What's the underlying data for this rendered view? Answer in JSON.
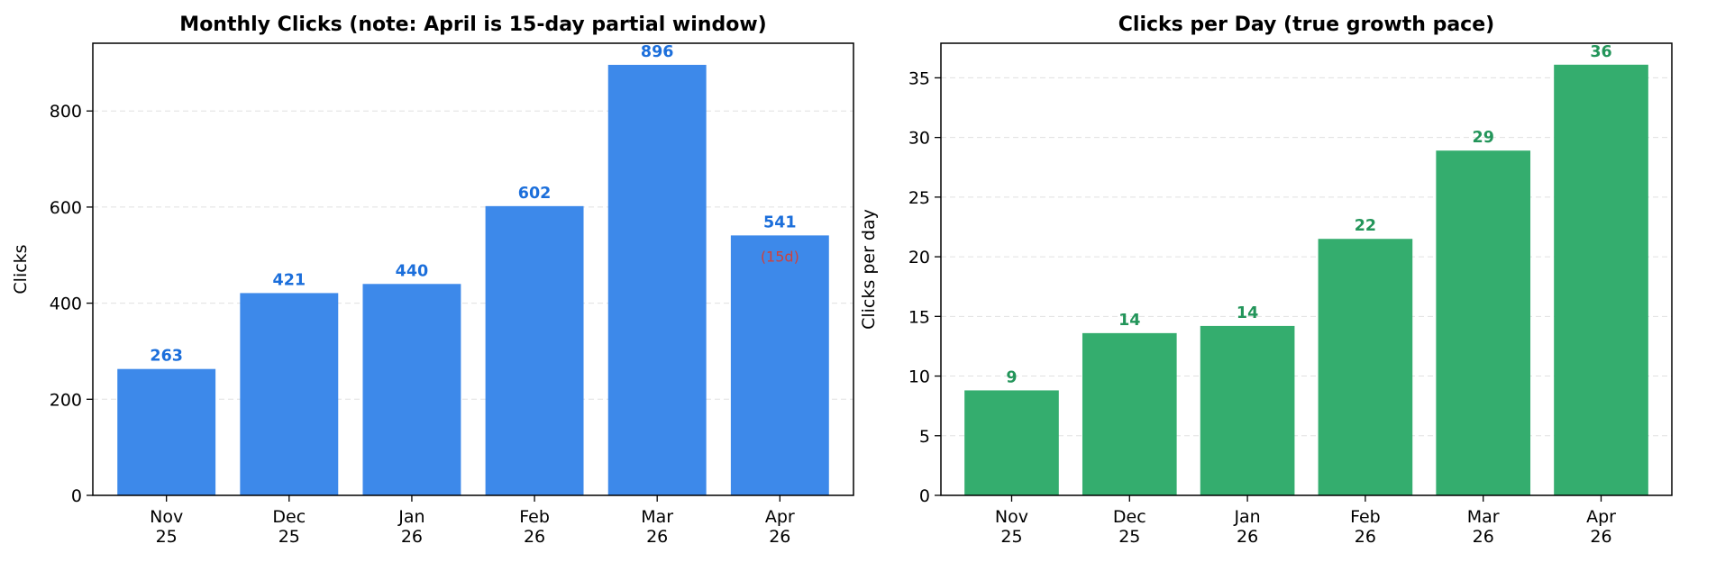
{
  "colors": {
    "clicks_bar": "#3d89ea",
    "clicks_label": "#1c6fdb",
    "perday_bar": "#34ad6e",
    "perday_label": "#23955a",
    "note_label": "#d0413a"
  },
  "chart_data": [
    {
      "type": "bar",
      "title": "Monthly Clicks (note: April is 15-day partial window)",
      "xlabel": "",
      "ylabel": "Clicks",
      "categories": [
        [
          "Nov",
          "25"
        ],
        [
          "Dec",
          "25"
        ],
        [
          "Jan",
          "26"
        ],
        [
          "Feb",
          "26"
        ],
        [
          "Mar",
          "26"
        ],
        [
          "Apr",
          "26"
        ]
      ],
      "values": [
        263,
        421,
        440,
        602,
        896,
        541
      ],
      "data_labels": [
        "263",
        "421",
        "440",
        "602",
        "896",
        "541"
      ],
      "annotations": [
        {
          "category_index": 5,
          "text": "(15d)"
        }
      ],
      "ylim": [
        0,
        941
      ],
      "yticks": [
        0,
        200,
        400,
        600,
        800
      ],
      "grid": true
    },
    {
      "type": "bar",
      "title": "Clicks per Day (true growth pace)",
      "xlabel": "",
      "ylabel": "Clicks per day",
      "categories": [
        [
          "Nov",
          "25"
        ],
        [
          "Dec",
          "25"
        ],
        [
          "Jan",
          "26"
        ],
        [
          "Feb",
          "26"
        ],
        [
          "Mar",
          "26"
        ],
        [
          "Apr",
          "26"
        ]
      ],
      "values": [
        8.8,
        13.6,
        14.2,
        21.5,
        28.9,
        36.1
      ],
      "data_labels": [
        "9",
        "14",
        "14",
        "22",
        "29",
        "36"
      ],
      "annotations": [],
      "ylim": [
        0,
        37.9
      ],
      "yticks": [
        0,
        5,
        10,
        15,
        20,
        25,
        30,
        35
      ],
      "grid": true
    }
  ]
}
